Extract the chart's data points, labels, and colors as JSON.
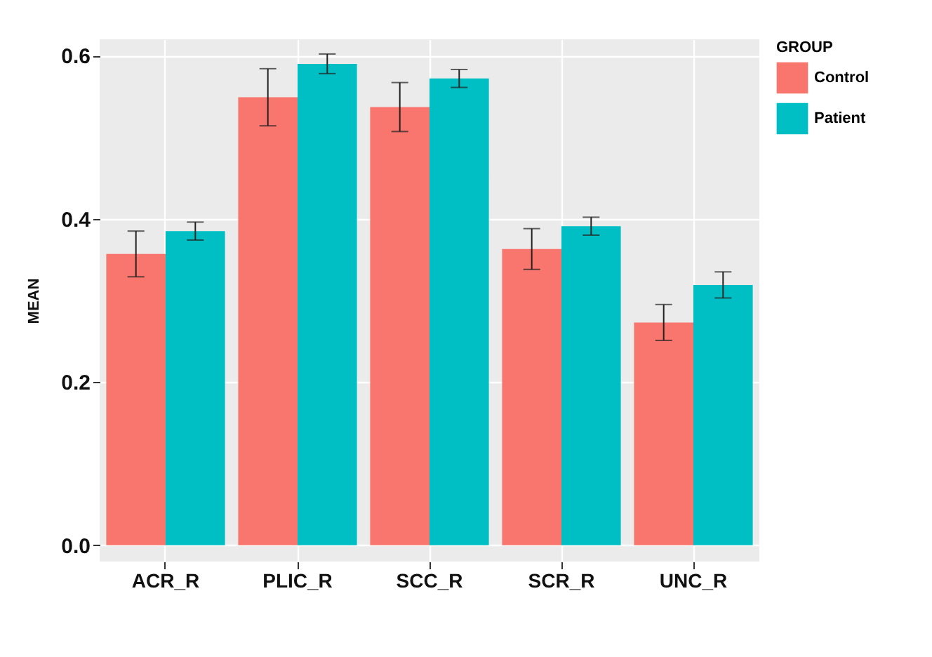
{
  "chart_data": {
    "type": "bar",
    "ylabel": "MEAN",
    "legend_title": "GROUP",
    "categories": [
      "ACR_R",
      "PLIC_R",
      "SCC_R",
      "SCR_R",
      "UNC_R"
    ],
    "series": [
      {
        "name": "Control",
        "color": "#f8766d",
        "values": [
          0.357,
          0.549,
          0.537,
          0.363,
          0.273
        ],
        "errors": [
          0.028,
          0.035,
          0.03,
          0.025,
          0.022
        ]
      },
      {
        "name": "Patient",
        "color": "#00bfc4",
        "values": [
          0.385,
          0.59,
          0.572,
          0.391,
          0.319
        ],
        "errors": [
          0.011,
          0.012,
          0.011,
          0.011,
          0.016
        ]
      }
    ],
    "ylim": [
      -0.02,
      0.62
    ],
    "yticks": [
      {
        "value": 0,
        "label": "0.0"
      },
      0.2,
      0.4,
      0.6
    ],
    "grid": true,
    "legend": "right"
  }
}
